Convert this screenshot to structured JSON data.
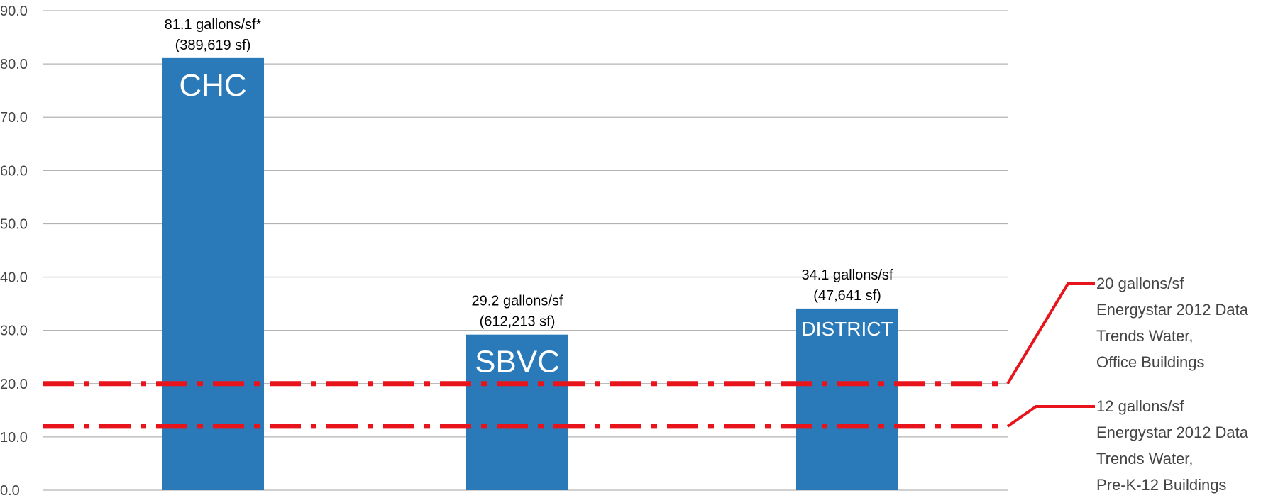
{
  "chart_data": {
    "type": "bar",
    "title": "",
    "xlabel": "",
    "ylabel": "",
    "ylim": [
      0,
      90
    ],
    "yticks": [
      "0.0",
      "10.0",
      "20.0",
      "30.0",
      "40.0",
      "50.0",
      "60.0",
      "70.0",
      "80.0",
      "90.0"
    ],
    "grid": true,
    "categories": [
      "CHC",
      "SBVC",
      "DISTRICT"
    ],
    "values": [
      81.1,
      29.2,
      34.1
    ],
    "bar_color": "#2a7ab9",
    "bar_annotations": [
      {
        "line1": "81.1 gallons/sf*",
        "line2": "(389,619 sf)"
      },
      {
        "line1": "29.2 gallons/sf",
        "line2": "(612,213 sf)"
      },
      {
        "line1": "34.1 gallons/sf",
        "line2": "(47,641 sf)"
      }
    ],
    "reference_lines": [
      {
        "value": 20,
        "color": "#e8141b",
        "style": "dash-dot",
        "label_lines": [
          "20 gallons/sf",
          "Energystar 2012 Data",
          "Trends Water,",
          "Office Buildings"
        ]
      },
      {
        "value": 12,
        "color": "#e8141b",
        "style": "dash-dot",
        "label_lines": [
          "12 gallons/sf",
          "Energystar 2012 Data",
          "Trends Water,",
          "Pre-K-12 Buildings"
        ]
      }
    ]
  }
}
